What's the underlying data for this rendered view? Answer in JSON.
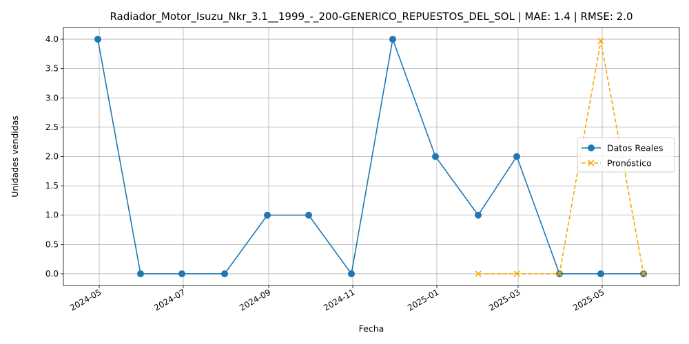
{
  "chart_data": {
    "type": "line",
    "title": "Radiador_Motor_Isuzu_Nkr_3.1__1999_-_200-GENERICO_REPUESTOS_DEL_SOL | MAE: 1.4 | RMSE: 2.0",
    "xlabel": "Fecha",
    "ylabel": "Unidades vendidas",
    "x_ticks": [
      "2024-05",
      "2024-07",
      "2024-09",
      "2024-11",
      "2025-01",
      "2025-03",
      "2025-05"
    ],
    "y_ticks": [
      "0.0",
      "0.5",
      "1.0",
      "1.5",
      "2.0",
      "2.5",
      "3.0",
      "3.5",
      "4.0"
    ],
    "ylim": [
      -0.2,
      4.2
    ],
    "xlim": [
      "2024-04-05",
      "2025-06-26"
    ],
    "grid": true,
    "legend_position": "center-right",
    "series": [
      {
        "name": "Datos Reales",
        "color": "#1f77b4",
        "marker": "circle",
        "linestyle": "solid",
        "x": [
          "2024-04-30",
          "2024-05-31",
          "2024-06-30",
          "2024-07-31",
          "2024-08-31",
          "2024-09-30",
          "2024-10-31",
          "2024-11-30",
          "2024-12-31",
          "2025-01-31",
          "2025-02-28",
          "2025-03-31",
          "2025-04-30",
          "2025-05-31"
        ],
        "values": [
          4,
          0,
          0,
          0,
          1,
          1,
          0,
          4,
          2,
          1,
          2,
          0,
          0,
          0
        ]
      },
      {
        "name": "Pronóstico",
        "color": "#ffa500",
        "marker": "x",
        "linestyle": "dashed",
        "x": [
          "2025-01-31",
          "2025-02-28",
          "2025-03-31",
          "2025-04-30",
          "2025-05-31"
        ],
        "values": [
          0,
          0,
          0,
          3.97,
          0
        ]
      }
    ]
  }
}
